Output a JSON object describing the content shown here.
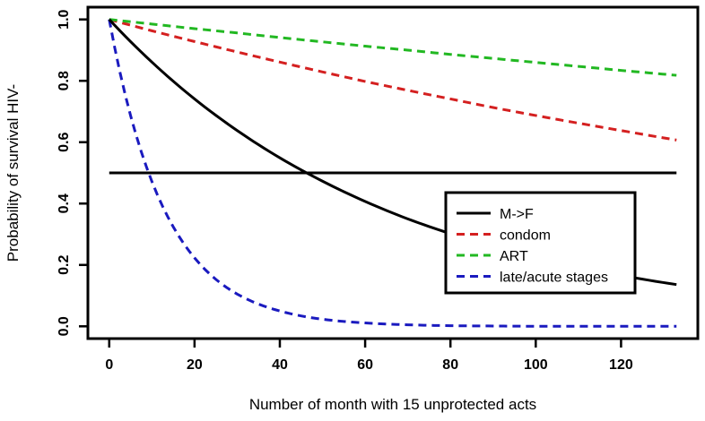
{
  "chart_data": {
    "type": "line",
    "title": "",
    "xlabel": "Number of month with 15 unprotected acts",
    "ylabel": "Probability of survival HIV-",
    "xlim": [
      -5,
      138
    ],
    "ylim": [
      -0.04,
      1.04
    ],
    "xticks": [
      0,
      20,
      40,
      60,
      80,
      100,
      120
    ],
    "yticks": [
      0.0,
      0.2,
      0.4,
      0.6,
      0.8,
      1.0
    ],
    "xtick_labels": [
      "0",
      "20",
      "40",
      "60",
      "80",
      "100",
      "120"
    ],
    "ytick_labels": [
      "0.0",
      "0.2",
      "0.4",
      "0.6",
      "0.8",
      "1.0"
    ],
    "x": [
      0,
      10,
      20,
      30,
      40,
      50,
      60,
      70,
      80,
      90,
      100,
      110,
      120,
      133
    ],
    "series": [
      {
        "name": "M->F",
        "color": "#000000",
        "style": "solid",
        "values": [
          1.0,
          0.861,
          0.741,
          0.638,
          0.549,
          0.473,
          0.407,
          0.35,
          0.302,
          0.26,
          0.223,
          0.192,
          0.166,
          0.136
        ]
      },
      {
        "name": "condom",
        "color": "#d42020",
        "style": "dashed",
        "values": [
          1.0,
          0.963,
          0.928,
          0.894,
          0.861,
          0.829,
          0.798,
          0.769,
          0.741,
          0.713,
          0.687,
          0.662,
          0.638,
          0.607
        ]
      },
      {
        "name": "ART",
        "color": "#22b822",
        "style": "dashed",
        "values": [
          1.0,
          0.985,
          0.97,
          0.956,
          0.941,
          0.927,
          0.913,
          0.9,
          0.886,
          0.873,
          0.86,
          0.847,
          0.834,
          0.818
        ]
      },
      {
        "name": "late/acute stages",
        "color": "#1a1abf",
        "style": "dashed",
        "values": [
          1.0,
          0.472,
          0.223,
          0.105,
          0.05,
          0.023,
          0.011,
          0.005,
          0.002,
          0.001,
          0.0,
          0.0,
          0.0,
          0.0
        ]
      }
    ],
    "reference_line": {
      "y": 0.5,
      "color": "#000000",
      "style": "solid"
    },
    "legend": {
      "placement": "bottom-right",
      "entries": [
        "M->F",
        "condom",
        "ART",
        "late/acute stages"
      ]
    },
    "grid": false
  }
}
